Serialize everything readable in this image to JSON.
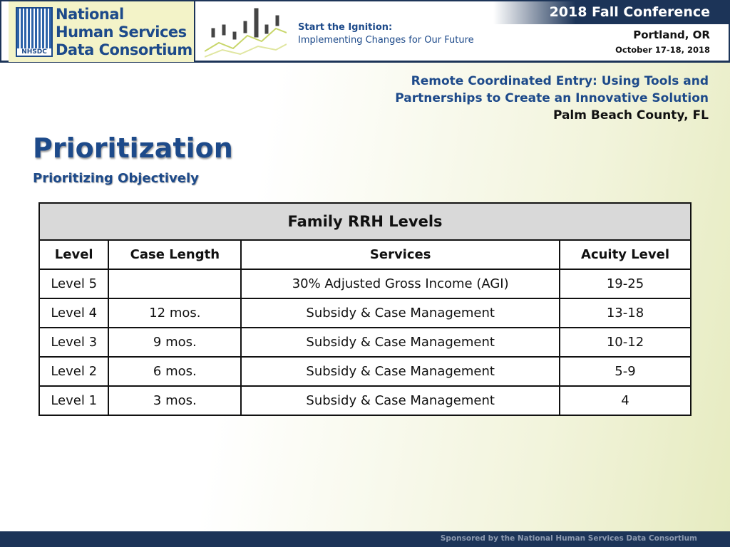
{
  "header": {
    "logo": {
      "mark": "NHSDC",
      "lines": [
        "National",
        "Human Services",
        "Data Consortium"
      ]
    },
    "theme": [
      "Start the Ignition:",
      "Implementing Changes for Our Future"
    ],
    "conference": "2018 Fall Conference",
    "location": "Portland, OR",
    "dates": "October 17-18, 2018"
  },
  "session": [
    "Remote Coordinated Entry: Using Tools and",
    "Partnerships to Create an Innovative Solution",
    "Palm Beach County, FL"
  ],
  "slide": {
    "title": "Prioritization",
    "subtitle": "Prioritizing Objectively"
  },
  "table": {
    "title": "Family RRH Levels",
    "columns": [
      "Level",
      "Case Length",
      "Services",
      "Acuity Level"
    ],
    "rows": [
      [
        "Level 5",
        null,
        "30% Adjusted Gross Income (AGI)",
        "19-25"
      ],
      [
        "Level 4",
        "12 mos.",
        "Subsidy & Case Management",
        "13-18"
      ],
      [
        "Level 3",
        "9 mos.",
        "Subsidy & Case Management",
        "10-12"
      ],
      [
        "Level 2",
        "6 mos.",
        "Subsidy & Case Management",
        "5-9"
      ],
      [
        "Level 1",
        "3 mos.",
        "Subsidy & Case Management",
        "4"
      ]
    ]
  },
  "footer": "Sponsored by the National Human Services Data Consortium"
}
